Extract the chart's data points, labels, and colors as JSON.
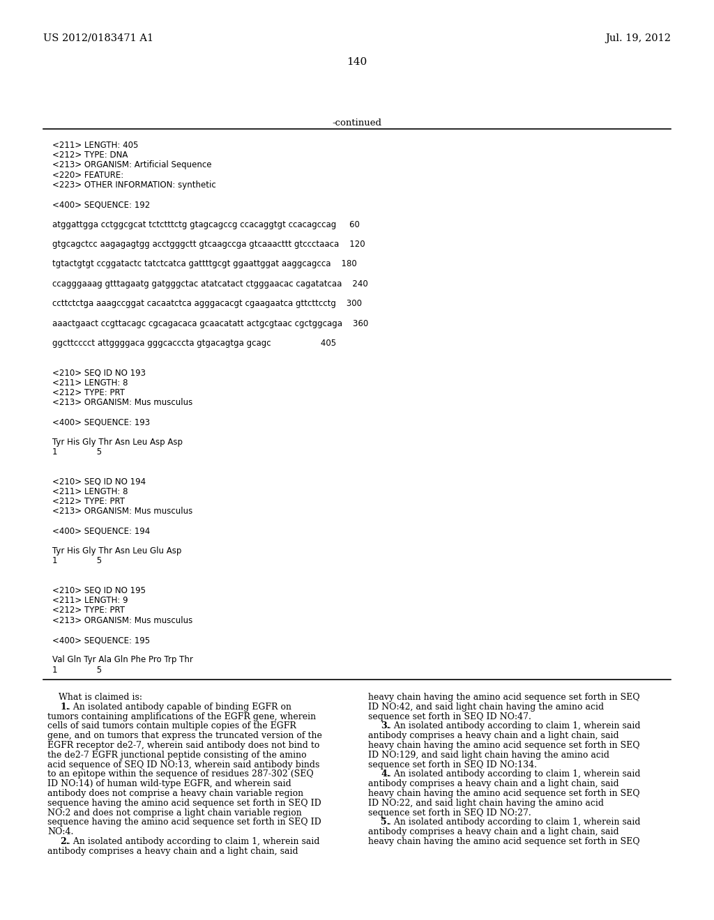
{
  "bg_color": "#ffffff",
  "header_left": "US 2012/0183471 A1",
  "header_right": "Jul. 19, 2012",
  "page_number": "140",
  "continued_label": "-continued",
  "mono_lines": [
    "<211> LENGTH: 405",
    "<212> TYPE: DNA",
    "<213> ORGANISM: Artificial Sequence",
    "<220> FEATURE:",
    "<223> OTHER INFORMATION: synthetic",
    "",
    "<400> SEQUENCE: 192",
    "",
    "atggattgga cctggcgcat tctctttctg gtagcagccg ccacaggtgt ccacagccag     60",
    "",
    "gtgcagctcc aagagagtgg acctgggctt gtcaagccga gtcaaacttt gtccctaaca    120",
    "",
    "tgtactgtgt ccggatactc tatctcatca gattttgcgt ggaattggat aaggcagcca    180",
    "",
    "ccagggaaag gtttagaatg gatgggctac atatcatact ctgggaacac cagatatcaa    240",
    "",
    "ccttctctga aaagccggat cacaatctca agggacacgt cgaagaatca gttcttcctg    300",
    "",
    "aaactgaact ccgttacagc cgcagacaca gcaacatatt actgcgtaac cgctggcaga    360",
    "",
    "ggcttcccct attggggaca gggcacccta gtgacagtga gcagc                   405",
    "",
    "",
    "<210> SEQ ID NO 193",
    "<211> LENGTH: 8",
    "<212> TYPE: PRT",
    "<213> ORGANISM: Mus musculus",
    "",
    "<400> SEQUENCE: 193",
    "",
    "Tyr His Gly Thr Asn Leu Asp Asp",
    "1               5",
    "",
    "",
    "<210> SEQ ID NO 194",
    "<211> LENGTH: 8",
    "<212> TYPE: PRT",
    "<213> ORGANISM: Mus musculus",
    "",
    "<400> SEQUENCE: 194",
    "",
    "Tyr His Gly Thr Asn Leu Glu Asp",
    "1               5",
    "",
    "",
    "<210> SEQ ID NO 195",
    "<211> LENGTH: 9",
    "<212> TYPE: PRT",
    "<213> ORGANISM: Mus musculus",
    "",
    "<400> SEQUENCE: 195",
    "",
    "Val Gln Tyr Ala Gln Phe Pro Trp Thr",
    "1               5"
  ],
  "claims_left_col": [
    [
      "normal",
      "    What is claimed is:"
    ],
    [
      "indent_bold",
      "1",
      ". An isolated antibody capable of binding EGFR on"
    ],
    [
      "normal",
      "tumors containing amplifications of the EGFR gene, wherein"
    ],
    [
      "normal",
      "cells of said tumors contain multiple copies of the EGFR"
    ],
    [
      "normal",
      "gene, and on tumors that express the truncated version of the"
    ],
    [
      "normal",
      "EGFR receptor de2-7, wherein said antibody does not bind to"
    ],
    [
      "normal",
      "the de2-7 EGFR junctional peptide consisting of the amino"
    ],
    [
      "normal",
      "acid sequence of SEQ ID NO:13, wherein said antibody binds"
    ],
    [
      "normal",
      "to an epitope within the sequence of residues 287-302 (SEQ"
    ],
    [
      "normal",
      "ID NO:14) of human wild-type EGFR, and wherein said"
    ],
    [
      "normal",
      "antibody does not comprise a heavy chain variable region"
    ],
    [
      "normal",
      "sequence having the amino acid sequence set forth in SEQ ID"
    ],
    [
      "normal",
      "NO:2 and does not comprise a light chain variable region"
    ],
    [
      "normal",
      "sequence having the amino acid sequence set forth in SEQ ID"
    ],
    [
      "normal",
      "NO:4."
    ],
    [
      "indent_bold",
      "2",
      ". An isolated antibody according to claim 1, wherein said"
    ],
    [
      "normal",
      "antibody comprises a heavy chain and a light chain, said"
    ]
  ],
  "claims_right_col": [
    [
      "normal",
      "heavy chain having the amino acid sequence set forth in SEQ"
    ],
    [
      "normal",
      "ID NO:42, and said light chain having the amino acid"
    ],
    [
      "normal",
      "sequence set forth in SEQ ID NO:47."
    ],
    [
      "indent_bold",
      "3",
      ". An isolated antibody according to claim 1, wherein said"
    ],
    [
      "normal",
      "antibody comprises a heavy chain and a light chain, said"
    ],
    [
      "normal",
      "heavy chain having the amino acid sequence set forth in SEQ"
    ],
    [
      "normal",
      "ID NO:129, and said light chain having the amino acid"
    ],
    [
      "normal",
      "sequence set forth in SEQ ID NO:134."
    ],
    [
      "indent_bold",
      "4",
      ". An isolated antibody according to claim 1, wherein said"
    ],
    [
      "normal",
      "antibody comprises a heavy chain and a light chain, said"
    ],
    [
      "normal",
      "heavy chain having the amino acid sequence set forth in SEQ"
    ],
    [
      "normal",
      "ID NO:22, and said light chain having the amino acid"
    ],
    [
      "normal",
      "sequence set forth in SEQ ID NO:27."
    ],
    [
      "indent_bold",
      "5",
      ". An isolated antibody according to claim 1, wherein said"
    ],
    [
      "normal",
      "antibody comprises a heavy chain and a light chain, said"
    ],
    [
      "normal",
      "heavy chain having the amino acid sequence set forth in SEQ"
    ]
  ]
}
